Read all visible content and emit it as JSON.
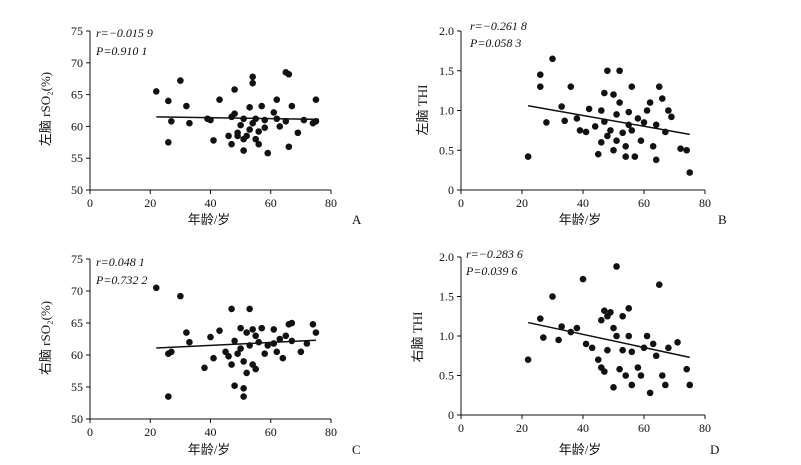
{
  "chart_data": [
    {
      "panel": "A",
      "type": "scatter",
      "xlabel": "年龄/岁",
      "ylabel": "左脑 rSO₂(%)",
      "xlim": [
        0,
        80
      ],
      "ylim": [
        50,
        75
      ],
      "xticks": [
        "0",
        "20",
        "40",
        "60",
        "80"
      ],
      "yticks": [
        "50",
        "55",
        "60",
        "65",
        "70",
        "75"
      ],
      "stats": {
        "r_label": "r=−0.015 9",
        "p_label": "P=0.910 1"
      },
      "trendline": {
        "x": [
          22,
          76
        ],
        "y": [
          61.5,
          61.1
        ]
      },
      "points": [
        [
          22,
          65.5
        ],
        [
          26,
          64
        ],
        [
          26,
          57.5
        ],
        [
          27,
          60.8
        ],
        [
          30,
          67.2
        ],
        [
          32,
          63.2
        ],
        [
          33,
          60.5
        ],
        [
          39,
          61.2
        ],
        [
          40,
          61
        ],
        [
          41,
          57.8
        ],
        [
          43,
          64.2
        ],
        [
          46,
          58.5
        ],
        [
          47,
          61.5
        ],
        [
          47,
          57.2
        ],
        [
          48,
          65.8
        ],
        [
          48,
          62
        ],
        [
          49,
          58.5
        ],
        [
          49,
          59
        ],
        [
          50,
          60.2
        ],
        [
          51,
          61.2
        ],
        [
          51,
          58
        ],
        [
          51,
          56.2
        ],
        [
          52,
          58.5
        ],
        [
          53,
          63
        ],
        [
          53,
          59.5
        ],
        [
          54,
          67.8
        ],
        [
          54,
          66.8
        ],
        [
          54,
          60.5
        ],
        [
          55,
          61.2
        ],
        [
          55,
          58
        ],
        [
          56,
          59.2
        ],
        [
          56,
          57.2
        ],
        [
          57,
          63.2
        ],
        [
          58,
          61
        ],
        [
          58,
          59.8
        ],
        [
          59,
          55.8
        ],
        [
          61,
          62.2
        ],
        [
          62,
          64.2
        ],
        [
          62,
          61.2
        ],
        [
          63,
          60
        ],
        [
          65,
          68.5
        ],
        [
          65,
          60.8
        ],
        [
          66,
          68.2
        ],
        [
          66,
          56.8
        ],
        [
          67,
          63.2
        ],
        [
          69,
          59
        ],
        [
          71,
          61
        ],
        [
          74,
          60.5
        ],
        [
          75,
          64.2
        ],
        [
          75,
          60.8
        ]
      ]
    },
    {
      "panel": "B",
      "type": "scatter",
      "xlabel": "年龄/岁",
      "ylabel": "左脑 THI",
      "xlim": [
        0,
        80
      ],
      "ylim": [
        0,
        2.0
      ],
      "xticks": [
        "0",
        "20",
        "40",
        "60",
        "80"
      ],
      "yticks": [
        "0",
        "0.5",
        "1.0",
        "1.5",
        "2.0"
      ],
      "stats": {
        "r_label": "r=−0.261 8",
        "p_label": "P=0.058 3"
      },
      "trendline": {
        "x": [
          22,
          75
        ],
        "y": [
          1.06,
          0.7
        ]
      },
      "points": [
        [
          22,
          0.42
        ],
        [
          26,
          1.45
        ],
        [
          26,
          1.3
        ],
        [
          28,
          0.85
        ],
        [
          30,
          1.65
        ],
        [
          33,
          1.05
        ],
        [
          34,
          0.87
        ],
        [
          36,
          1.3
        ],
        [
          38,
          0.9
        ],
        [
          39,
          0.75
        ],
        [
          41,
          0.73
        ],
        [
          42,
          1.02
        ],
        [
          44,
          0.8
        ],
        [
          45,
          0.45
        ],
        [
          46,
          1.0
        ],
        [
          46,
          0.6
        ],
        [
          47,
          1.22
        ],
        [
          47,
          0.86
        ],
        [
          48,
          1.5
        ],
        [
          48,
          0.68
        ],
        [
          49,
          0.75
        ],
        [
          50,
          1.2
        ],
        [
          50,
          0.5
        ],
        [
          51,
          0.95
        ],
        [
          51,
          0.62
        ],
        [
          52,
          1.5
        ],
        [
          52,
          1.1
        ],
        [
          53,
          0.72
        ],
        [
          54,
          0.55
        ],
        [
          54,
          0.42
        ],
        [
          55,
          0.98
        ],
        [
          55,
          0.82
        ],
        [
          56,
          1.3
        ],
        [
          56,
          0.75
        ],
        [
          57,
          0.42
        ],
        [
          58,
          0.9
        ],
        [
          59,
          0.62
        ],
        [
          60,
          0.85
        ],
        [
          61,
          1.0
        ],
        [
          62,
          1.1
        ],
        [
          63,
          0.55
        ],
        [
          64,
          0.38
        ],
        [
          64,
          0.82
        ],
        [
          65,
          1.3
        ],
        [
          66,
          1.15
        ],
        [
          67,
          0.73
        ],
        [
          68,
          1.0
        ],
        [
          69,
          0.92
        ],
        [
          72,
          0.52
        ],
        [
          74,
          0.5
        ],
        [
          75,
          0.22
        ]
      ]
    },
    {
      "panel": "C",
      "type": "scatter",
      "xlabel": "年龄/岁",
      "ylabel": "右脑 rSO₂(%)",
      "xlim": [
        0,
        80
      ],
      "ylim": [
        50,
        75
      ],
      "xticks": [
        "0",
        "20",
        "40",
        "60",
        "80"
      ],
      "yticks": [
        "50",
        "55",
        "60",
        "65",
        "70",
        "75"
      ],
      "stats": {
        "r_label": "r=0.048 1",
        "p_label": "P=0.732 2"
      },
      "trendline": {
        "x": [
          22,
          75
        ],
        "y": [
          61.1,
          62.3
        ]
      },
      "points": [
        [
          22,
          70.5
        ],
        [
          26,
          60.2
        ],
        [
          26,
          53.5
        ],
        [
          27,
          60.5
        ],
        [
          30,
          69.2
        ],
        [
          32,
          63.5
        ],
        [
          33,
          62
        ],
        [
          38,
          58
        ],
        [
          40,
          62.8
        ],
        [
          41,
          59.5
        ],
        [
          43,
          63.8
        ],
        [
          45,
          60.5
        ],
        [
          46,
          59.8
        ],
        [
          47,
          67.2
        ],
        [
          47,
          58.5
        ],
        [
          48,
          55.2
        ],
        [
          48,
          62.2
        ],
        [
          49,
          60.2
        ],
        [
          50,
          64.2
        ],
        [
          50,
          61
        ],
        [
          51,
          59
        ],
        [
          51,
          54.8
        ],
        [
          51,
          53.5
        ],
        [
          52,
          63.5
        ],
        [
          52,
          57.2
        ],
        [
          53,
          67.2
        ],
        [
          53,
          61.5
        ],
        [
          54,
          64
        ],
        [
          54,
          58.5
        ],
        [
          55,
          63
        ],
        [
          55,
          57.8
        ],
        [
          56,
          62
        ],
        [
          57,
          64.2
        ],
        [
          58,
          60.2
        ],
        [
          59,
          61.5
        ],
        [
          61,
          64
        ],
        [
          61,
          61.8
        ],
        [
          62,
          60.5
        ],
        [
          63,
          62.5
        ],
        [
          64,
          59.5
        ],
        [
          65,
          63
        ],
        [
          66,
          64.8
        ],
        [
          67,
          65
        ],
        [
          67,
          62.2
        ],
        [
          70,
          60.5
        ],
        [
          72,
          61.8
        ],
        [
          74,
          64.8
        ],
        [
          75,
          63.5
        ]
      ]
    },
    {
      "panel": "D",
      "type": "scatter",
      "xlabel": "年龄/岁",
      "ylabel": "右脑 THI",
      "xlim": [
        0,
        80
      ],
      "ylim": [
        0,
        2.0
      ],
      "xticks": [
        "0",
        "20",
        "40",
        "60",
        "80"
      ],
      "yticks": [
        "0",
        "0.5",
        "1.0",
        "1.5",
        "2.0"
      ],
      "stats": {
        "r_label": "r=−0.283 6",
        "p_label": "P=0.039 6"
      },
      "trendline": {
        "x": [
          22,
          75
        ],
        "y": [
          1.17,
          0.73
        ]
      },
      "points": [
        [
          22,
          0.7
        ],
        [
          26,
          1.22
        ],
        [
          27,
          0.98
        ],
        [
          30,
          1.5
        ],
        [
          32,
          0.95
        ],
        [
          33,
          1.12
        ],
        [
          36,
          1.05
        ],
        [
          38,
          1.1
        ],
        [
          40,
          1.72
        ],
        [
          41,
          0.9
        ],
        [
          43,
          0.85
        ],
        [
          45,
          0.7
        ],
        [
          46,
          1.2
        ],
        [
          46,
          0.6
        ],
        [
          47,
          1.32
        ],
        [
          47,
          0.55
        ],
        [
          48,
          1.25
        ],
        [
          48,
          0.82
        ],
        [
          49,
          1.3
        ],
        [
          50,
          1.1
        ],
        [
          50,
          0.35
        ],
        [
          51,
          1.88
        ],
        [
          51,
          1.0
        ],
        [
          52,
          0.58
        ],
        [
          53,
          1.25
        ],
        [
          53,
          0.82
        ],
        [
          54,
          0.5
        ],
        [
          55,
          1.35
        ],
        [
          55,
          1.0
        ],
        [
          56,
          0.8
        ],
        [
          56,
          0.38
        ],
        [
          58,
          0.6
        ],
        [
          59,
          0.5
        ],
        [
          60,
          0.85
        ],
        [
          61,
          1.0
        ],
        [
          62,
          0.28
        ],
        [
          63,
          0.9
        ],
        [
          64,
          0.75
        ],
        [
          65,
          1.65
        ],
        [
          66,
          0.5
        ],
        [
          67,
          0.38
        ],
        [
          68,
          0.85
        ],
        [
          71,
          0.92
        ],
        [
          74,
          0.58
        ],
        [
          75,
          0.38
        ]
      ]
    }
  ]
}
